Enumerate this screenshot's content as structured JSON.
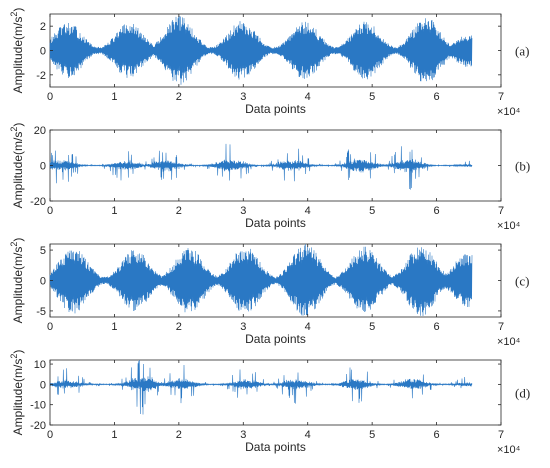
{
  "chart_data": [
    {
      "type": "line",
      "panel_label": "(a)",
      "xlabel": "Data points",
      "ylabel": "Amplitude(m/s2)",
      "x_multiplier": "×10⁴",
      "xlim": [
        0,
        70000
      ],
      "ylim": [
        -3,
        3
      ],
      "xticks": [
        0,
        10000,
        20000,
        30000,
        40000,
        50000,
        60000,
        70000
      ],
      "xtick_labels": [
        "0",
        "1",
        "2",
        "3",
        "4",
        "5",
        "6",
        "7"
      ],
      "yticks": [
        -2,
        0,
        2
      ],
      "ytick_labels": [
        "-2",
        "0",
        "2"
      ],
      "series": [
        {
          "color": "#2a78c4",
          "length": 65536,
          "pattern": "amplitude-modulated",
          "burst_centers": [
            2800,
            12300,
            20100,
            29800,
            39600,
            49000,
            58400,
            65000
          ],
          "burst_peaks": [
            2.3,
            2.3,
            2.9,
            2.5,
            2.4,
            2.4,
            2.8,
            1.4
          ],
          "baseline": 0.3
        }
      ]
    },
    {
      "type": "line",
      "panel_label": "(b)",
      "xlabel": "Data points",
      "ylabel": "Amplitude(m/s2)",
      "x_multiplier": "×10⁴",
      "xlim": [
        0,
        70000
      ],
      "ylim": [
        -20,
        20
      ],
      "xticks": [
        0,
        10000,
        20000,
        30000,
        40000,
        50000,
        60000,
        70000
      ],
      "xtick_labels": [
        "0",
        "1",
        "2",
        "3",
        "4",
        "5",
        "6",
        "7"
      ],
      "yticks": [
        -20,
        0,
        20
      ],
      "ytick_labels": [
        "-20",
        "0",
        "20"
      ],
      "series": [
        {
          "color": "#2a78c4",
          "length": 65536,
          "pattern": "impulsive",
          "burst_centers": [
            1800,
            11800,
            18000,
            28000,
            37500,
            48200,
            55600,
            65000
          ],
          "burst_peaks": [
            12,
            10,
            12,
            14,
            12,
            15,
            14,
            3
          ],
          "baseline": 0.8
        }
      ]
    },
    {
      "type": "line",
      "panel_label": "(c)",
      "xlabel": "Data points",
      "ylabel": "Amplitude(m/s2)",
      "x_multiplier": "×10⁴",
      "xlim": [
        0,
        70000
      ],
      "ylim": [
        -6,
        6
      ],
      "xticks": [
        0,
        10000,
        20000,
        30000,
        40000,
        50000,
        60000,
        70000
      ],
      "xtick_labels": [
        "0",
        "1",
        "2",
        "3",
        "4",
        "5",
        "6",
        "7"
      ],
      "yticks": [
        -5,
        0,
        5
      ],
      "ytick_labels": [
        "-5",
        "0",
        "5"
      ],
      "series": [
        {
          "color": "#2a78c4",
          "length": 65536,
          "pattern": "amplitude-modulated",
          "burst_centers": [
            3600,
            13200,
            21600,
            30300,
            39700,
            48800,
            57600,
            64800
          ],
          "burst_peaks": [
            5.6,
            5.2,
            5.5,
            5.8,
            6.2,
            5.6,
            6.0,
            4.5
          ],
          "baseline": 0.6
        }
      ]
    },
    {
      "type": "line",
      "panel_label": "(d)",
      "xlabel": "Data points",
      "ylabel": "Amplitude(m/s2)",
      "x_multiplier": "×10⁴",
      "xlim": [
        0,
        70000
      ],
      "ylim": [
        -20,
        12
      ],
      "xticks": [
        0,
        10000,
        20000,
        30000,
        40000,
        50000,
        60000,
        70000
      ],
      "xtick_labels": [
        "0",
        "1",
        "2",
        "3",
        "4",
        "5",
        "6",
        "7"
      ],
      "yticks": [
        -20,
        -10,
        0,
        10
      ],
      "ytick_labels": [
        "-20",
        "-10",
        "0",
        "10"
      ],
      "series": [
        {
          "color": "#2a78c4",
          "length": 65536,
          "pattern": "impulsive",
          "burst_centers": [
            2700,
            14400,
            20400,
            30400,
            38200,
            47500,
            56300,
            65000
          ],
          "burst_peaks": [
            8,
            15,
            10,
            9,
            10,
            10,
            10,
            4
          ],
          "baseline": 0.8
        }
      ]
    }
  ]
}
